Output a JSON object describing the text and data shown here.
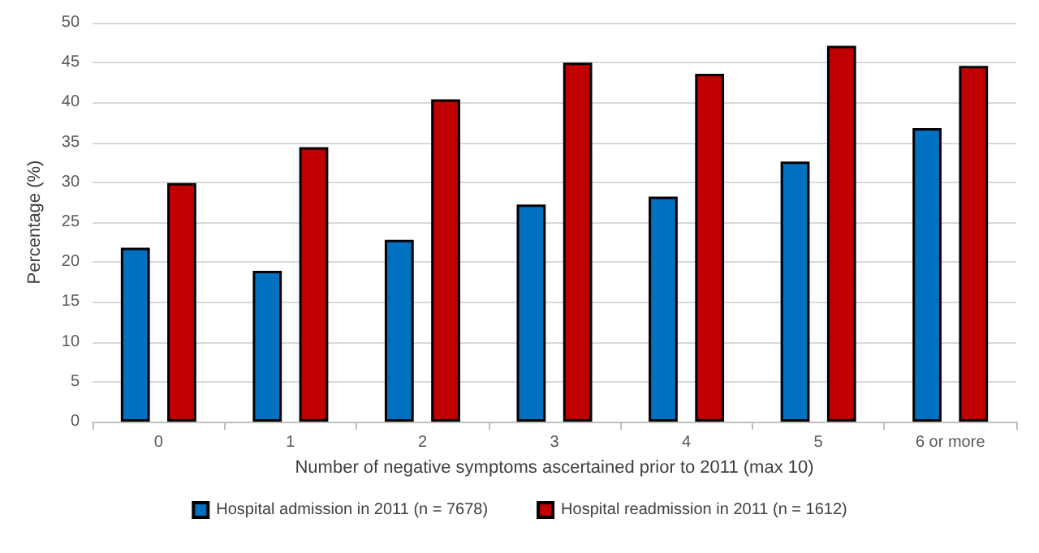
{
  "chart_data": {
    "type": "bar",
    "xlabel": "Number of negative symptoms ascertained prior to 2011 (max 10)",
    "ylabel": "Percentage (%)",
    "categories": [
      "0",
      "1",
      "2",
      "3",
      "4",
      "5",
      "6 or more"
    ],
    "series": [
      {
        "name": "Hospital admission in 2011 (n = 7678)",
        "color": "#0070c0",
        "values": [
          21.8,
          18.9,
          22.8,
          27.2,
          28.2,
          32.6,
          36.8
        ]
      },
      {
        "name": "Hospital readmission in 2011 (n = 1612)",
        "color": "#c00000",
        "values": [
          29.9,
          34.4,
          40.4,
          45.0,
          43.6,
          47.1,
          44.6
        ]
      }
    ],
    "ylim": [
      0,
      50
    ],
    "yticks": [
      0,
      5,
      10,
      15,
      20,
      25,
      30,
      35,
      40,
      45,
      50
    ],
    "grid": "y",
    "legend": "bottom"
  }
}
